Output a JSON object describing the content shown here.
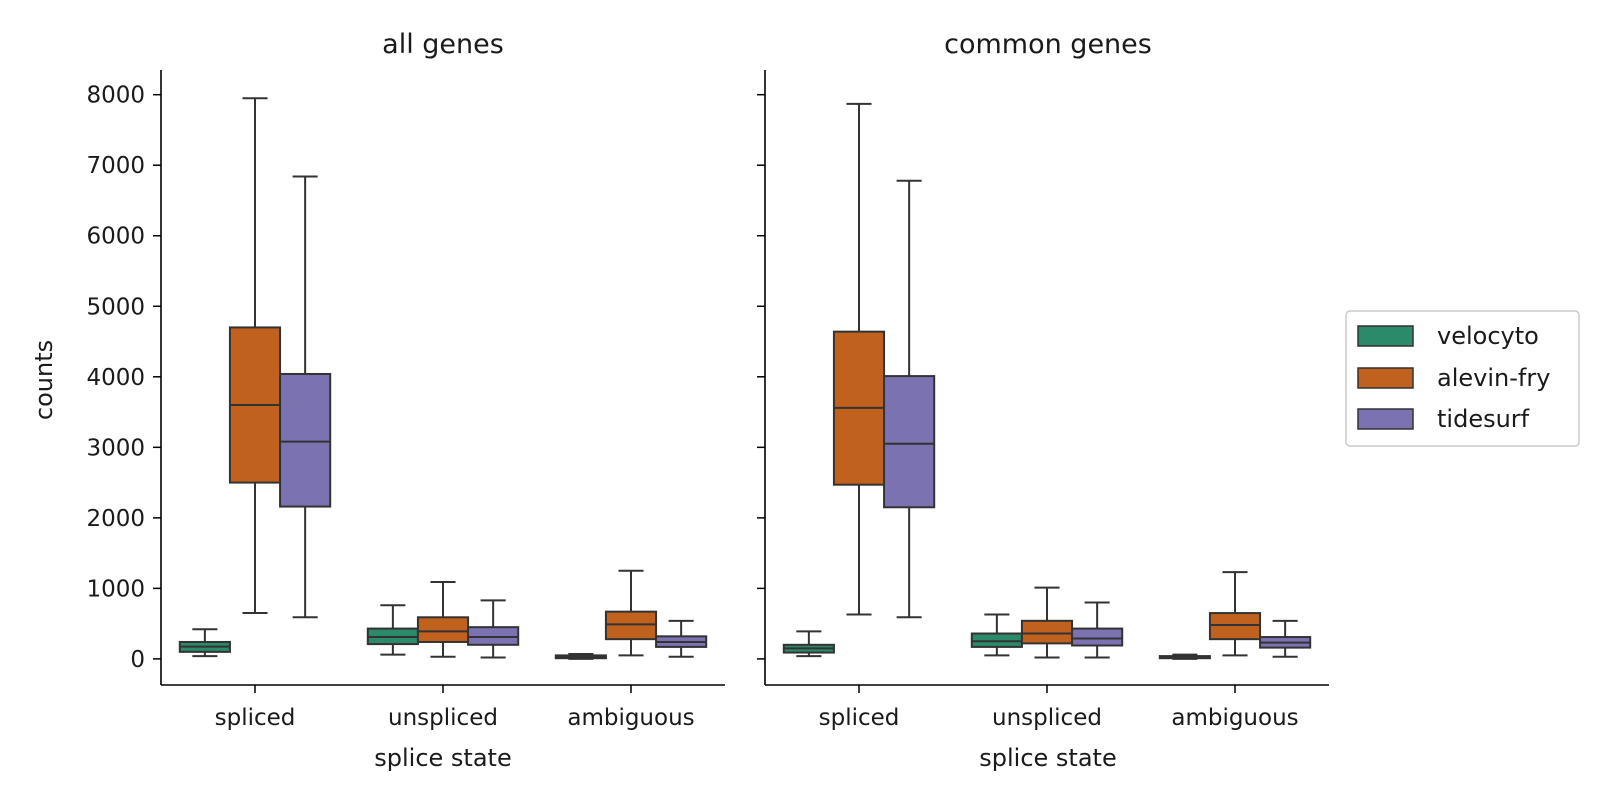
{
  "chart_data": [
    {
      "type": "box",
      "title": "all genes",
      "xlabel": "splice state",
      "ylabel": "counts",
      "categories": [
        "spliced",
        "unspliced",
        "ambiguous"
      ],
      "ylim": [
        -370,
        8350
      ],
      "yticks": [
        0,
        1000,
        2000,
        3000,
        4000,
        5000,
        6000,
        7000,
        8000
      ],
      "series": [
        {
          "name": "velocyto",
          "color": "#2a8a6a",
          "boxes": [
            {
              "min": 40,
              "q1": 100,
              "median": 175,
              "q3": 240,
              "max": 420
            },
            {
              "min": 60,
              "q1": 210,
              "median": 310,
              "q3": 430,
              "max": 760
            },
            {
              "min": 0,
              "q1": 10,
              "median": 30,
              "q3": 50,
              "max": 70
            }
          ]
        },
        {
          "name": "alevin-fry",
          "color": "#c0611e",
          "boxes": [
            {
              "min": 650,
              "q1": 2500,
              "median": 3600,
              "q3": 4700,
              "max": 7950
            },
            {
              "min": 30,
              "q1": 240,
              "median": 390,
              "q3": 590,
              "max": 1090
            },
            {
              "min": 50,
              "q1": 280,
              "median": 490,
              "q3": 670,
              "max": 1250
            }
          ]
        },
        {
          "name": "tidesurf",
          "color": "#7b72b2",
          "boxes": [
            {
              "min": 590,
              "q1": 2160,
              "median": 3080,
              "q3": 4040,
              "max": 6840
            },
            {
              "min": 20,
              "q1": 200,
              "median": 310,
              "q3": 450,
              "max": 830
            },
            {
              "min": 30,
              "q1": 170,
              "median": 240,
              "q3": 320,
              "max": 540
            }
          ]
        }
      ]
    },
    {
      "type": "box",
      "title": "common genes",
      "xlabel": "splice state",
      "ylabel": "",
      "categories": [
        "spliced",
        "unspliced",
        "ambiguous"
      ],
      "ylim": [
        -370,
        8350
      ],
      "yticks": [
        0,
        1000,
        2000,
        3000,
        4000,
        5000,
        6000,
        7000,
        8000
      ],
      "series": [
        {
          "name": "velocyto",
          "color": "#2a8a6a",
          "boxes": [
            {
              "min": 40,
              "q1": 90,
              "median": 150,
              "q3": 200,
              "max": 390
            },
            {
              "min": 50,
              "q1": 170,
              "median": 250,
              "q3": 360,
              "max": 630
            },
            {
              "min": 0,
              "q1": 10,
              "median": 25,
              "q3": 40,
              "max": 60
            }
          ]
        },
        {
          "name": "alevin-fry",
          "color": "#c0611e",
          "boxes": [
            {
              "min": 630,
              "q1": 2470,
              "median": 3560,
              "q3": 4640,
              "max": 7870
            },
            {
              "min": 20,
              "q1": 220,
              "median": 360,
              "q3": 540,
              "max": 1010
            },
            {
              "min": 50,
              "q1": 280,
              "median": 480,
              "q3": 650,
              "max": 1230
            }
          ]
        },
        {
          "name": "tidesurf",
          "color": "#7b72b2",
          "boxes": [
            {
              "min": 590,
              "q1": 2150,
              "median": 3050,
              "q3": 4010,
              "max": 6780
            },
            {
              "min": 20,
              "q1": 190,
              "median": 290,
              "q3": 430,
              "max": 800
            },
            {
              "min": 30,
              "q1": 160,
              "median": 230,
              "q3": 310,
              "max": 540
            }
          ]
        }
      ]
    }
  ],
  "legend": {
    "placement": "right",
    "entries": [
      {
        "label": "velocyto",
        "color": "#2a8a6a"
      },
      {
        "label": "alevin-fry",
        "color": "#c0611e"
      },
      {
        "label": "tidesurf",
        "color": "#7b72b2"
      }
    ]
  }
}
